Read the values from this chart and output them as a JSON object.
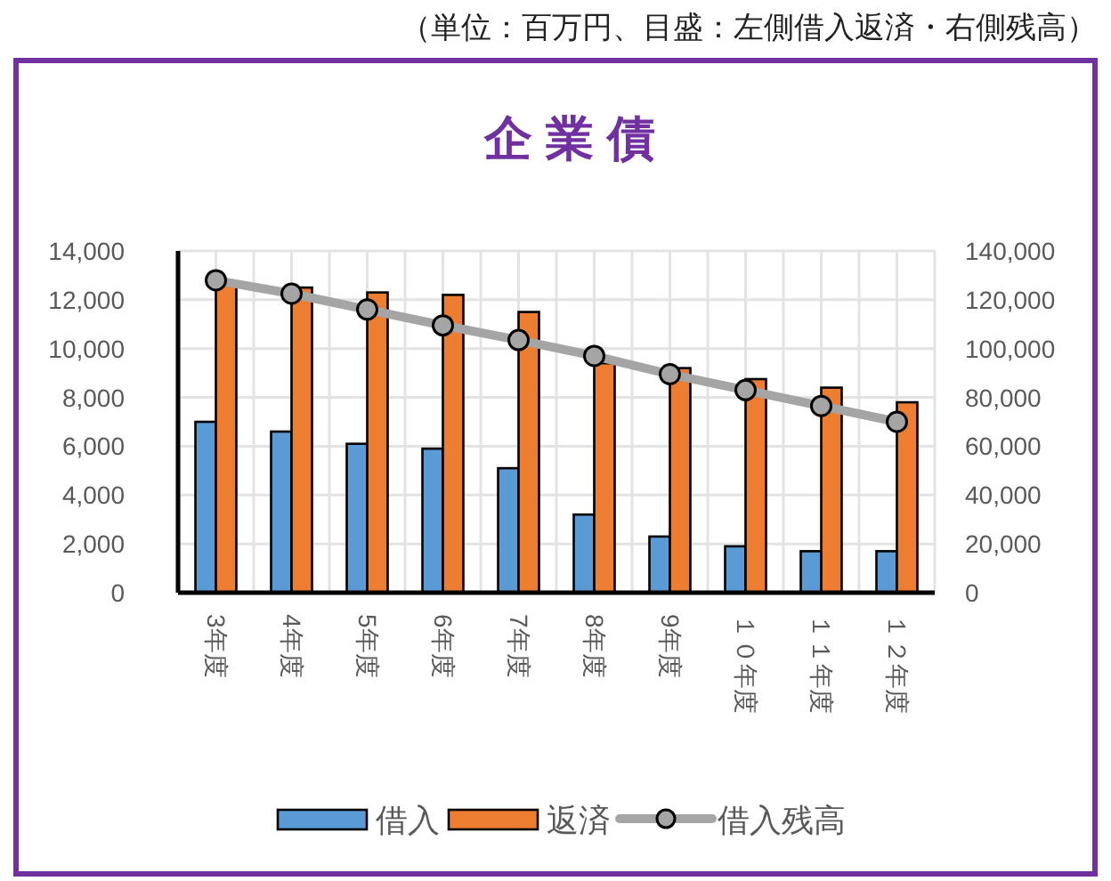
{
  "chart_data": {
    "type": "bar",
    "title": "企 業 債",
    "annotations": [
      "（単位：百万円、目盛：左側借入返済・右側残高）"
    ],
    "categories": [
      "3年度",
      "4年度",
      "5年度",
      "6年度",
      "7年度",
      "8年度",
      "9年度",
      "１０年度",
      "１１年度",
      "１２年度"
    ],
    "series": [
      {
        "name": "借入",
        "color": "#5b9bd5",
        "values": [
          7000,
          6600,
          6100,
          5900,
          5100,
          3200,
          2300,
          1900,
          1700,
          1700
        ]
      },
      {
        "name": "返済",
        "color": "#ed7d31",
        "values": [
          12700,
          12500,
          12300,
          12200,
          11500,
          9400,
          9200,
          8750,
          8400,
          7800
        ]
      },
      {
        "name": "借入残高",
        "type": "line",
        "axis": "y2",
        "color": "#a5a5a5",
        "marker": "circle",
        "values": [
          128000,
          122500,
          116000,
          109500,
          103500,
          97000,
          89500,
          83000,
          76500,
          70000
        ]
      }
    ],
    "ylim": [
      0,
      14000
    ],
    "yticks": [
      0,
      {
        "value": 2000,
        "label": "2,000"
      },
      {
        "value": 4000,
        "label": "4,000"
      },
      {
        "value": 6000,
        "label": "6,000"
      },
      {
        "value": 8000,
        "label": "8,000"
      },
      {
        "value": 10000,
        "label": "10,000"
      },
      {
        "value": 12000,
        "label": "12,000"
      },
      {
        "value": 14000,
        "label": "14,000"
      }
    ],
    "y2lim": [
      0,
      140000
    ],
    "y2ticks": [
      0,
      {
        "value": 20000,
        "label": "20,000"
      },
      {
        "value": 40000,
        "label": "40,000"
      },
      {
        "value": 60000,
        "label": "60,000"
      },
      {
        "value": 80000,
        "label": "80,000"
      },
      {
        "value": 100000,
        "label": "100,000"
      },
      {
        "value": 120000,
        "label": "120,000"
      },
      {
        "value": 140000,
        "label": "140,000"
      }
    ],
    "grid": true,
    "legend": "bottom"
  }
}
